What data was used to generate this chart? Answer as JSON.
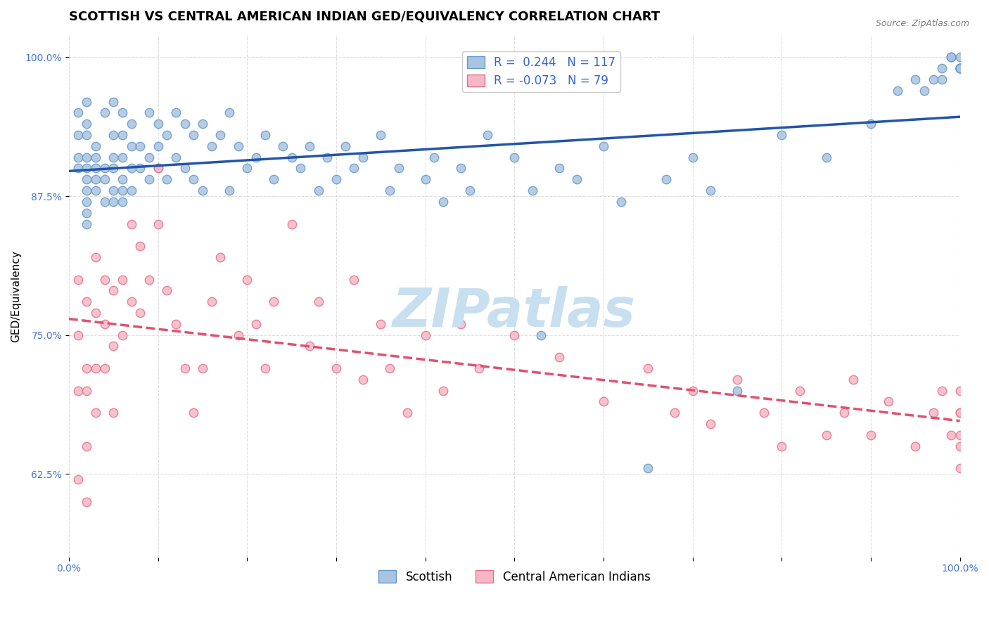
{
  "title": "SCOTTISH VS CENTRAL AMERICAN INDIAN GED/EQUIVALENCY CORRELATION CHART",
  "source": "Source: ZipAtlas.com",
  "xlabel": "",
  "ylabel": "GED/Equivalency",
  "xlim": [
    0,
    1
  ],
  "ylim": [
    0.55,
    1.02
  ],
  "yticks": [
    0.625,
    0.75,
    0.875,
    1.0
  ],
  "ytick_labels": [
    "62.5%",
    "75.0%",
    "87.5%",
    "100.0%"
  ],
  "xticks": [
    0,
    0.1,
    0.2,
    0.3,
    0.4,
    0.5,
    0.6,
    0.7,
    0.8,
    0.9,
    1.0
  ],
  "xtick_labels": [
    "0.0%",
    "",
    "",
    "",
    "",
    "",
    "",
    "",
    "",
    "",
    "100.0%"
  ],
  "legend_R_scottish": "0.244",
  "legend_N_scottish": "117",
  "legend_R_central": "-0.073",
  "legend_N_central": "79",
  "scottish_color": "#a8c4e0",
  "scottish_edge_color": "#6699cc",
  "central_color": "#f5b8c4",
  "central_edge_color": "#e87090",
  "trend_scottish_color": "#2255aa",
  "trend_central_color": "#e05070",
  "watermark": "ZIPatlas",
  "watermark_color": "#c8dff0",
  "background_color": "#ffffff",
  "grid_color": "#dddddd",
  "scottish_x": [
    0.01,
    0.01,
    0.01,
    0.01,
    0.02,
    0.02,
    0.02,
    0.02,
    0.02,
    0.02,
    0.02,
    0.02,
    0.02,
    0.02,
    0.03,
    0.03,
    0.03,
    0.03,
    0.03,
    0.04,
    0.04,
    0.04,
    0.04,
    0.05,
    0.05,
    0.05,
    0.05,
    0.05,
    0.05,
    0.06,
    0.06,
    0.06,
    0.06,
    0.06,
    0.06,
    0.07,
    0.07,
    0.07,
    0.07,
    0.08,
    0.08,
    0.09,
    0.09,
    0.09,
    0.1,
    0.1,
    0.1,
    0.11,
    0.11,
    0.12,
    0.12,
    0.13,
    0.13,
    0.14,
    0.14,
    0.15,
    0.15,
    0.16,
    0.17,
    0.18,
    0.18,
    0.19,
    0.2,
    0.21,
    0.22,
    0.23,
    0.24,
    0.25,
    0.26,
    0.27,
    0.28,
    0.29,
    0.3,
    0.31,
    0.32,
    0.33,
    0.35,
    0.36,
    0.37,
    0.4,
    0.41,
    0.42,
    0.44,
    0.45,
    0.47,
    0.5,
    0.52,
    0.53,
    0.55,
    0.57,
    0.6,
    0.62,
    0.65,
    0.67,
    0.7,
    0.72,
    0.75,
    0.8,
    0.85,
    0.9,
    0.93,
    0.95,
    0.96,
    0.97,
    0.98,
    0.98,
    0.99,
    0.99,
    0.99,
    1.0,
    1.0,
    1.0,
    1.0,
    1.0,
    1.0,
    1.0,
    1.0
  ],
  "scottish_y": [
    0.95,
    0.93,
    0.91,
    0.9,
    0.96,
    0.94,
    0.93,
    0.91,
    0.9,
    0.89,
    0.88,
    0.87,
    0.86,
    0.85,
    0.92,
    0.91,
    0.9,
    0.89,
    0.88,
    0.95,
    0.9,
    0.89,
    0.87,
    0.96,
    0.93,
    0.91,
    0.9,
    0.88,
    0.87,
    0.95,
    0.93,
    0.91,
    0.89,
    0.88,
    0.87,
    0.94,
    0.92,
    0.9,
    0.88,
    0.92,
    0.9,
    0.95,
    0.91,
    0.89,
    0.94,
    0.92,
    0.9,
    0.93,
    0.89,
    0.95,
    0.91,
    0.94,
    0.9,
    0.93,
    0.89,
    0.94,
    0.88,
    0.92,
    0.93,
    0.95,
    0.88,
    0.92,
    0.9,
    0.91,
    0.93,
    0.89,
    0.92,
    0.91,
    0.9,
    0.92,
    0.88,
    0.91,
    0.89,
    0.92,
    0.9,
    0.91,
    0.93,
    0.88,
    0.9,
    0.89,
    0.91,
    0.87,
    0.9,
    0.88,
    0.93,
    0.91,
    0.88,
    0.75,
    0.9,
    0.89,
    0.92,
    0.87,
    0.63,
    0.89,
    0.91,
    0.88,
    0.7,
    0.93,
    0.91,
    0.94,
    0.97,
    0.98,
    0.97,
    0.98,
    0.99,
    0.98,
    1.0,
    1.0,
    1.0,
    0.99,
    0.99,
    0.99,
    0.99,
    0.99,
    0.99,
    0.99,
    1.0
  ],
  "central_x": [
    0.01,
    0.01,
    0.01,
    0.01,
    0.02,
    0.02,
    0.02,
    0.02,
    0.02,
    0.03,
    0.03,
    0.03,
    0.03,
    0.04,
    0.04,
    0.04,
    0.05,
    0.05,
    0.05,
    0.06,
    0.06,
    0.07,
    0.07,
    0.08,
    0.08,
    0.09,
    0.1,
    0.1,
    0.11,
    0.12,
    0.13,
    0.14,
    0.15,
    0.16,
    0.17,
    0.19,
    0.2,
    0.21,
    0.22,
    0.23,
    0.25,
    0.27,
    0.28,
    0.3,
    0.32,
    0.33,
    0.35,
    0.36,
    0.38,
    0.4,
    0.42,
    0.44,
    0.46,
    0.5,
    0.55,
    0.6,
    0.65,
    0.68,
    0.7,
    0.72,
    0.75,
    0.78,
    0.8,
    0.82,
    0.85,
    0.87,
    0.88,
    0.9,
    0.92,
    0.95,
    0.97,
    0.98,
    0.99,
    1.0,
    1.0,
    1.0,
    1.0,
    1.0,
    1.0
  ],
  "central_y": [
    0.62,
    0.7,
    0.75,
    0.8,
    0.6,
    0.65,
    0.7,
    0.72,
    0.78,
    0.68,
    0.72,
    0.77,
    0.82,
    0.72,
    0.76,
    0.8,
    0.68,
    0.74,
    0.79,
    0.75,
    0.8,
    0.78,
    0.85,
    0.77,
    0.83,
    0.8,
    0.85,
    0.9,
    0.79,
    0.76,
    0.72,
    0.68,
    0.72,
    0.78,
    0.82,
    0.75,
    0.8,
    0.76,
    0.72,
    0.78,
    0.85,
    0.74,
    0.78,
    0.72,
    0.8,
    0.71,
    0.76,
    0.72,
    0.68,
    0.75,
    0.7,
    0.76,
    0.72,
    0.75,
    0.73,
    0.69,
    0.72,
    0.68,
    0.7,
    0.67,
    0.71,
    0.68,
    0.65,
    0.7,
    0.66,
    0.68,
    0.71,
    0.66,
    0.69,
    0.65,
    0.68,
    0.7,
    0.66,
    0.68,
    0.7,
    0.65,
    0.68,
    0.66,
    0.63
  ],
  "marker_size": 80,
  "title_fontsize": 13,
  "axis_fontsize": 11,
  "tick_fontsize": 10,
  "legend_fontsize": 12
}
